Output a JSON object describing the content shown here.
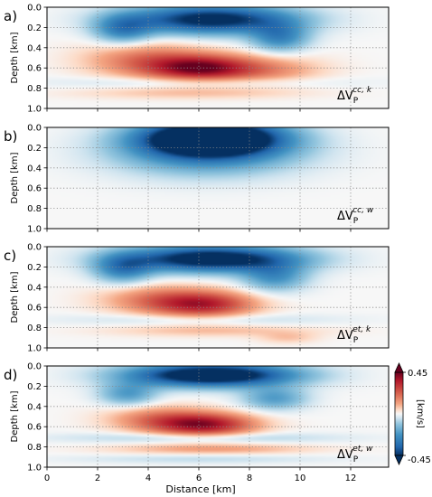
{
  "chart_data": {
    "type": "heatmap",
    "xlabel": "Distance [km]",
    "ylabel": "Depth [km]",
    "xlim": [
      0,
      13.5
    ],
    "ylim": [
      0,
      1.0
    ],
    "x_ticks": [
      "0",
      "2",
      "4",
      "6",
      "8",
      "10",
      "12"
    ],
    "y_ticks": [
      "0.0",
      "0.2",
      "0.4",
      "0.6",
      "0.8",
      "1.0"
    ],
    "grid": true,
    "colorbar": {
      "label": "[km/s]",
      "max_label": "0.45",
      "min_label": "-0.45",
      "vmin": -0.45,
      "vmax": 0.45,
      "cmap": "RdBu_r",
      "colors": {
        "high": "#67001f",
        "mid": "#f7f7f7",
        "low": "#053061"
      }
    },
    "panels": [
      {
        "letter": "a)",
        "label_main": "ΔV",
        "label_sub": "P",
        "label_sup": "cc, k",
        "anomalies": [
          {
            "x": 6.5,
            "depth": 0.12,
            "sx": 2.3,
            "sd": 0.1,
            "dv": -0.5
          },
          {
            "x": 3.0,
            "depth": 0.22,
            "sx": 0.8,
            "sd": 0.1,
            "dv": -0.25
          },
          {
            "x": 9.2,
            "depth": 0.3,
            "sx": 0.8,
            "sd": 0.1,
            "dv": -0.25
          },
          {
            "x": 6.0,
            "depth": 0.6,
            "sx": 1.4,
            "sd": 0.09,
            "dv": 0.38
          },
          {
            "x": 3.8,
            "depth": 0.52,
            "sx": 1.6,
            "sd": 0.12,
            "dv": 0.18
          },
          {
            "x": 8.5,
            "depth": 0.62,
            "sx": 1.6,
            "sd": 0.1,
            "dv": 0.15
          },
          {
            "x": 6.0,
            "depth": 0.74,
            "sx": 3.5,
            "sd": 0.04,
            "dv": -0.08
          },
          {
            "x": 5.5,
            "depth": 0.85,
            "sx": 3.0,
            "sd": 0.04,
            "dv": 0.07
          }
        ]
      },
      {
        "letter": "b)",
        "label_main": "ΔV",
        "label_sub": "P",
        "label_sup": "cc, w",
        "anomalies": [
          {
            "x": 6.5,
            "depth": 0.1,
            "sx": 1.9,
            "sd": 0.12,
            "dv": -0.7
          },
          {
            "x": 6.3,
            "depth": 0.25,
            "sx": 2.5,
            "sd": 0.16,
            "dv": -0.25
          }
        ]
      },
      {
        "letter": "c)",
        "label_main": "ΔV",
        "label_sub": "P",
        "label_sup": "et, k",
        "anomalies": [
          {
            "x": 6.5,
            "depth": 0.12,
            "sx": 2.4,
            "sd": 0.09,
            "dv": -0.55
          },
          {
            "x": 3.0,
            "depth": 0.22,
            "sx": 0.8,
            "sd": 0.1,
            "dv": -0.25
          },
          {
            "x": 9.0,
            "depth": 0.3,
            "sx": 0.9,
            "sd": 0.1,
            "dv": -0.22
          },
          {
            "x": 6.2,
            "depth": 0.57,
            "sx": 1.4,
            "sd": 0.09,
            "dv": 0.33
          },
          {
            "x": 4.2,
            "depth": 0.52,
            "sx": 1.5,
            "sd": 0.1,
            "dv": 0.15
          },
          {
            "x": 6.0,
            "depth": 0.72,
            "sx": 3.5,
            "sd": 0.04,
            "dv": -0.07
          },
          {
            "x": 6.5,
            "depth": 0.83,
            "sx": 2.8,
            "sd": 0.04,
            "dv": 0.08
          },
          {
            "x": 9.5,
            "depth": 0.9,
            "sx": 0.8,
            "sd": 0.04,
            "dv": 0.07
          }
        ]
      },
      {
        "letter": "d)",
        "label_main": "ΔV",
        "label_sub": "P",
        "label_sup": "et, w",
        "anomalies": [
          {
            "x": 6.5,
            "depth": 0.09,
            "sx": 2.3,
            "sd": 0.08,
            "dv": -0.6
          },
          {
            "x": 3.2,
            "depth": 0.28,
            "sx": 0.8,
            "sd": 0.08,
            "dv": -0.2
          },
          {
            "x": 9.0,
            "depth": 0.32,
            "sx": 0.9,
            "sd": 0.08,
            "dv": -0.2
          },
          {
            "x": 6.2,
            "depth": 0.58,
            "sx": 1.4,
            "sd": 0.08,
            "dv": 0.38
          },
          {
            "x": 4.3,
            "depth": 0.52,
            "sx": 1.4,
            "sd": 0.09,
            "dv": 0.15
          },
          {
            "x": 6.0,
            "depth": 0.71,
            "sx": 3.6,
            "sd": 0.035,
            "dv": -0.1
          },
          {
            "x": 6.5,
            "depth": 0.82,
            "sx": 2.6,
            "sd": 0.035,
            "dv": 0.12
          },
          {
            "x": 6.0,
            "depth": 0.92,
            "sx": 3.5,
            "sd": 0.03,
            "dv": -0.06
          }
        ]
      }
    ]
  }
}
